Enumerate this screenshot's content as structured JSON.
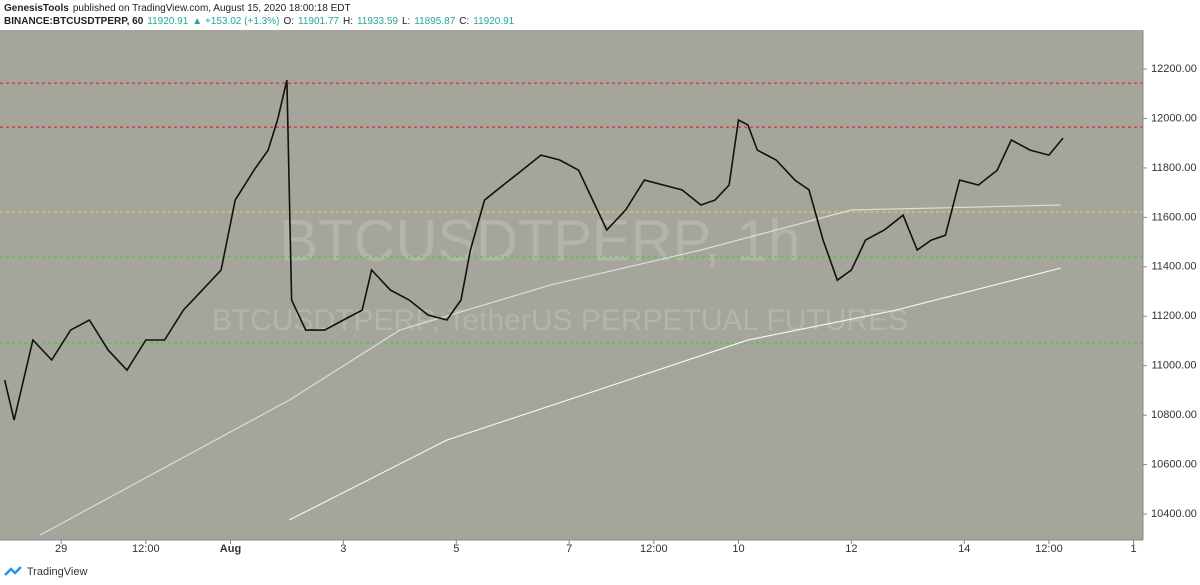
{
  "header": {
    "publisher": "GenesisTools",
    "published": "published on TradingView.com, August 15, 2020 18:00:18 EDT",
    "symbol": "BINANCE:BTCUSDTPERP, 60",
    "last": "11920.91",
    "change": "▲ +153.02 (+1.3%)",
    "open_label": "O:",
    "open": "11901.77",
    "high_label": "H:",
    "high": "11933.59",
    "low_label": "L:",
    "low": "11895.87",
    "close_label": "C:",
    "close": "11920.91"
  },
  "footer": {
    "brand": "TradingView"
  },
  "chart_data": {
    "type": "line",
    "watermark": "BTCUSDTPERP, 1h",
    "watermark_sub": "BTCUSDTPERP, TetherUS PERPETUAL FUTURES",
    "background": "#a5a59c",
    "xlim": [
      -26,
      460
    ],
    "ylim": [
      10295,
      12358
    ],
    "xticks": [
      {
        "value": 0,
        "label": "29"
      },
      {
        "value": 36,
        "label": "12:00"
      },
      {
        "value": 72,
        "label": "Aug"
      },
      {
        "value": 120,
        "label": "3"
      },
      {
        "value": 168,
        "label": "5"
      },
      {
        "value": 216,
        "label": "7"
      },
      {
        "value": 252,
        "label": "12:00"
      },
      {
        "value": 288,
        "label": "10"
      },
      {
        "value": 336,
        "label": "12"
      },
      {
        "value": 384,
        "label": "14"
      },
      {
        "value": 420,
        "label": "12:00"
      },
      {
        "value": 456,
        "label": "1"
      }
    ],
    "yticks": [
      {
        "value": 10400,
        "label": "10400.00"
      },
      {
        "value": 10600,
        "label": "10600.00"
      },
      {
        "value": 10800,
        "label": "10800.00"
      },
      {
        "value": 11000,
        "label": "11000.00"
      },
      {
        "value": 11200,
        "label": "11200.00"
      },
      {
        "value": 11400,
        "label": "11400.00"
      },
      {
        "value": 11600,
        "label": "11600.00"
      },
      {
        "value": 11800,
        "label": "11800.00"
      },
      {
        "value": 12000,
        "label": "12000.00"
      },
      {
        "value": 12200,
        "label": "12200.00"
      }
    ],
    "levels": [
      {
        "value": 12143,
        "color": "#e03030"
      },
      {
        "value": 11965,
        "color": "#e03030"
      },
      {
        "value": 11622,
        "color": "#e8d83a"
      },
      {
        "value": 11440,
        "color": "#3ad23a"
      },
      {
        "value": 11092,
        "color": "#3ad23a"
      }
    ],
    "series": [
      {
        "color": "#111111",
        "x": [
          -24,
          -20,
          -12,
          -4,
          4,
          12,
          20,
          28,
          36,
          44,
          52,
          60,
          68,
          74,
          82,
          88,
          92,
          96,
          98,
          104,
          112,
          120,
          128,
          132,
          140,
          148,
          156,
          164,
          170,
          174,
          180,
          188,
          196,
          204,
          212,
          220,
          226,
          232,
          240,
          248,
          256,
          264,
          272,
          278,
          284,
          288,
          292,
          296,
          304,
          312,
          318,
          324,
          330,
          336,
          342,
          350,
          358,
          364,
          370,
          376,
          382,
          390,
          398,
          404,
          412,
          420,
          426
        ],
        "values": [
          10942,
          10780,
          11104,
          11023,
          11144,
          11185,
          11063,
          10982,
          11104,
          11104,
          11225,
          11306,
          11387,
          11670,
          11791,
          11872,
          11994,
          12155,
          11266,
          11144,
          11144,
          11185,
          11225,
          11387,
          11306,
          11266,
          11205,
          11185,
          11266,
          11468,
          11670,
          11731,
          11791,
          11852,
          11832,
          11791,
          11670,
          11549,
          11630,
          11751,
          11731,
          11711,
          11650,
          11670,
          11731,
          11994,
          11974,
          11872,
          11832,
          11751,
          11711,
          11508,
          11346,
          11387,
          11508,
          11549,
          11609,
          11468,
          11508,
          11528,
          11751,
          11731,
          11791,
          11913,
          11872,
          11852,
          11920.91
        ]
      },
      {
        "color": "#f2f2f2",
        "x": [
          97,
          164,
          228,
          292,
          355,
          425
        ],
        "values": [
          10376,
          10699,
          10901,
          11104,
          11225,
          11395
        ]
      },
      {
        "color": "#dcdcdc",
        "x": [
          -9,
          97,
          144,
          208,
          272,
          336,
          425
        ],
        "values": [
          10315,
          10861,
          11144,
          11326,
          11468,
          11630,
          11650
        ]
      }
    ]
  }
}
